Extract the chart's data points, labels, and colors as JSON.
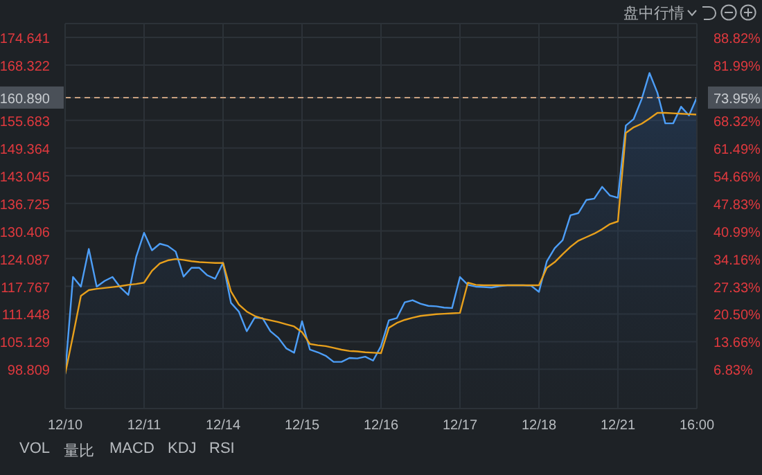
{
  "chart_data": {
    "type": "line",
    "categories": [
      "12/10",
      null,
      null,
      null,
      null,
      null,
      null,
      null,
      null,
      null,
      "12/11",
      null,
      null,
      null,
      null,
      null,
      null,
      null,
      null,
      null,
      "12/14",
      null,
      null,
      null,
      null,
      null,
      null,
      null,
      null,
      null,
      "12/15",
      null,
      null,
      null,
      null,
      null,
      null,
      null,
      null,
      null,
      "12/16",
      null,
      null,
      null,
      null,
      null,
      null,
      null,
      null,
      null,
      "12/17",
      null,
      null,
      null,
      null,
      null,
      null,
      null,
      null,
      null,
      "12/18",
      null,
      null,
      null,
      null,
      null,
      null,
      null,
      null,
      null,
      "12/21",
      null,
      null,
      null,
      null,
      null,
      null,
      null,
      null,
      null,
      "16:00"
    ],
    "series": [
      {
        "type": "area",
        "color": "#4d9ef7",
        "values": [
          97.7,
          119.9,
          117.7,
          126.3,
          117.7,
          119.0,
          119.9,
          117.5,
          115.8,
          124.5,
          130.0,
          126.0,
          127.5,
          127.0,
          125.7,
          120.0,
          122.0,
          122.0,
          120.3,
          119.5,
          123.1,
          114.0,
          112.0,
          107.5,
          110.6,
          110.5,
          107.5,
          106.0,
          103.6,
          102.6,
          109.8,
          103.3,
          102.7,
          101.9,
          100.5,
          100.5,
          101.4,
          101.3,
          101.7,
          100.8,
          104.1,
          110.0,
          110.5,
          114.1,
          114.6,
          113.8,
          113.3,
          113.2,
          112.9,
          112.8,
          119.9,
          118.1,
          117.7,
          117.6,
          117.5,
          117.8,
          118.0,
          118.0,
          118.0,
          117.9,
          116.5,
          123.5,
          126.5,
          128.3,
          134.0,
          134.5,
          137.5,
          137.8,
          140.5,
          138.5,
          138.0,
          154.5,
          156.0,
          160.5,
          166.5,
          162.0,
          155.0,
          155.0,
          158.8,
          156.8,
          160.9
        ]
      },
      {
        "color": "#e8a01c",
        "values": [
          97.7,
          106.5,
          115.6,
          116.9,
          117.2,
          117.4,
          117.6,
          117.8,
          118.1,
          118.3,
          118.6,
          121.3,
          123.0,
          123.7,
          124.0,
          123.8,
          123.5,
          123.3,
          123.2,
          123.1,
          123.1,
          116.6,
          113.6,
          112.0,
          111.0,
          110.4,
          110.0,
          109.6,
          109.1,
          108.6,
          107.3,
          104.6,
          104.3,
          104.1,
          103.7,
          103.3,
          103.0,
          102.9,
          102.7,
          102.6,
          102.5,
          108.3,
          109.4,
          110.1,
          110.6,
          111.0,
          111.2,
          111.4,
          111.5,
          111.6,
          111.7,
          118.6,
          118.1,
          118.0,
          118.0,
          118.0,
          118.0,
          118.0,
          118.0,
          118.0,
          118.0,
          122.0,
          123.3,
          125.1,
          126.8,
          128.2,
          129.0,
          129.8,
          130.8,
          132.0,
          132.6,
          152.8,
          154.1,
          154.9,
          156.1,
          157.4,
          157.4,
          157.3,
          157.2,
          157.1,
          157.0
        ]
      }
    ],
    "ylim": [
      89.85,
      177.8
    ],
    "yticks": [
      98.809,
      105.129,
      111.448,
      117.767,
      124.087,
      130.406,
      136.725,
      143.045,
      149.364,
      155.683,
      {
        "value": 160.89,
        "label": "160.890"
      },
      168.322,
      174.641
    ],
    "y2lim": [
      -2.85,
      92.24
    ],
    "y2ticks": [
      {
        "value": 6.83,
        "label": "6.83%"
      },
      {
        "value": 13.66,
        "label": "13.66%"
      },
      {
        "value": 20.5,
        "label": "20.50%"
      },
      {
        "value": 27.33,
        "label": "27.33%"
      },
      {
        "value": 34.16,
        "label": "34.16%"
      },
      {
        "value": 40.99,
        "label": "40.99%"
      },
      {
        "value": 47.83,
        "label": "47.83%"
      },
      {
        "value": 54.66,
        "label": "54.66%"
      },
      {
        "value": 61.49,
        "label": "61.49%"
      },
      {
        "value": 68.32,
        "label": "68.32%"
      },
      {
        "value": 73.95,
        "label": "73.95%"
      },
      {
        "value": 81.99,
        "label": "81.99%"
      },
      {
        "value": 88.82,
        "label": "88.82%"
      }
    ],
    "ref_lines": [
      {
        "axis": "y",
        "value": 160.89,
        "color": "#c8a080",
        "line_style": "dashed"
      }
    ],
    "grid": true,
    "annotations": [
      "盘中行情",
      "VOL",
      "量比",
      "MACD",
      "KDJ",
      "RSI"
    ]
  }
}
